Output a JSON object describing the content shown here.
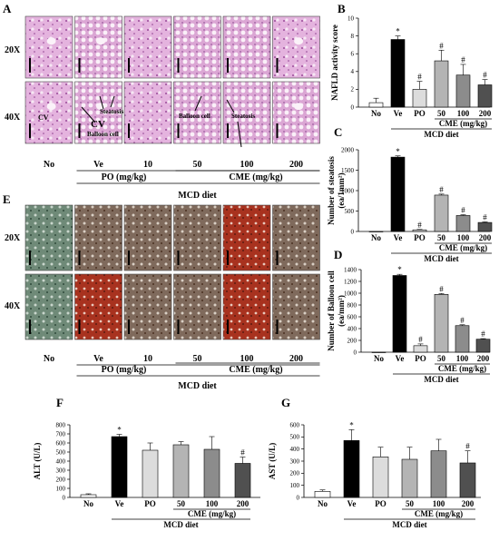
{
  "panels": {
    "histology_he": {
      "letter": "A",
      "row_labels": [
        "20X",
        "40X"
      ],
      "col_labels": [
        "No",
        "Ve",
        "10",
        "50",
        "100",
        "200"
      ],
      "group_po": "PO (mg/kg)",
      "group_cme": "CME (mg/kg)",
      "diet": "MCD diet",
      "annotations": [
        "CV",
        "CV",
        "Steatosis",
        "Balloon cell",
        "Balloon cell",
        "Steatosis"
      ]
    },
    "histology_mt": {
      "letter": "E",
      "row_labels": [
        "20X",
        "40X"
      ],
      "col_labels": [
        "No",
        "Ve",
        "10",
        "50",
        "100",
        "200"
      ],
      "group_po": "PO (mg/kg)",
      "group_cme": "CME (mg/kg)",
      "diet": "MCD diet"
    }
  },
  "colors": {
    "No": "#ffffff",
    "Ve": "#000000",
    "PO": "#dcdcdc",
    "CME50": "#b4b4b4",
    "CME100": "#8c8c8c",
    "CME200": "#505050",
    "he_stain": "#d9a3d3",
    "mt_stain": "#8a6a55"
  },
  "chart_data": [
    {
      "panel": "B",
      "type": "bar",
      "categories": [
        "No",
        "Ve",
        "PO",
        "50",
        "100",
        "200"
      ],
      "values": [
        0.5,
        7.6,
        2.0,
        5.2,
        3.6,
        2.5
      ],
      "errors": [
        0.5,
        0.4,
        0.9,
        1.2,
        1.2,
        0.6
      ],
      "markers": [
        "",
        "*",
        "#",
        "#",
        "#",
        "#"
      ],
      "ylabel": "NAFLD activity score",
      "ylim": [
        0,
        10
      ],
      "yticks": [
        0,
        2,
        4,
        6,
        8,
        10
      ],
      "group_label": "CME (mg/kg)",
      "diet": "MCD diet"
    },
    {
      "panel": "C",
      "type": "bar",
      "categories": [
        "No",
        "Ve",
        "PO",
        "50",
        "100",
        "200"
      ],
      "values": [
        0,
        1820,
        40,
        890,
        390,
        220
      ],
      "errors": [
        0,
        30,
        10,
        25,
        20,
        15
      ],
      "markers": [
        "",
        "*",
        "#",
        "#",
        "#",
        "#"
      ],
      "ylabel": "Number of steatosis",
      "ylabel_unit": "(ea/1mm²)",
      "ylim": [
        0,
        2000
      ],
      "yticks": [
        0,
        500,
        1000,
        1500,
        2000
      ],
      "group_label": "CME (mg/kg)",
      "diet": "MCD diet"
    },
    {
      "panel": "D",
      "type": "bar",
      "categories": [
        "No",
        "Ve",
        "PO",
        "50",
        "100",
        "200"
      ],
      "values": [
        0,
        1300,
        110,
        980,
        450,
        220
      ],
      "errors": [
        0,
        20,
        30,
        15,
        15,
        10
      ],
      "markers": [
        "",
        "*",
        "#",
        "#",
        "#",
        "#"
      ],
      "ylabel": "Number of Balloon cell",
      "ylabel_unit": "(ea/mm²)",
      "ylim": [
        0,
        1400
      ],
      "yticks": [
        0,
        200,
        400,
        600,
        800,
        1000,
        1200,
        1400
      ],
      "group_label": "CME (mg/kg)",
      "diet": "MCD diet"
    },
    {
      "panel": "F",
      "type": "bar",
      "categories": [
        "No",
        "Ve",
        "PO",
        "50",
        "100",
        "200"
      ],
      "values": [
        30,
        670,
        520,
        580,
        530,
        375
      ],
      "errors": [
        10,
        25,
        80,
        35,
        140,
        70
      ],
      "markers": [
        "",
        "*",
        "",
        "",
        "",
        "#"
      ],
      "ylabel": "ALT (U/L)",
      "ylim": [
        0,
        800
      ],
      "yticks": [
        0,
        100,
        200,
        300,
        400,
        500,
        600,
        700,
        800
      ],
      "group_label": "CME (mg/kg)",
      "diet": "MCD diet"
    },
    {
      "panel": "G",
      "type": "bar",
      "categories": [
        "No",
        "Ve",
        "PO",
        "50",
        "100",
        "200"
      ],
      "values": [
        50,
        470,
        335,
        315,
        385,
        285
      ],
      "errors": [
        12,
        90,
        80,
        100,
        95,
        100
      ],
      "markers": [
        "",
        "*",
        "",
        "",
        "",
        "#"
      ],
      "ylabel": "AST (U/L)",
      "ylim": [
        0,
        600
      ],
      "yticks": [
        0,
        100,
        200,
        300,
        400,
        500,
        600
      ],
      "group_label": "CME (mg/kg)",
      "diet": "MCD diet"
    }
  ]
}
